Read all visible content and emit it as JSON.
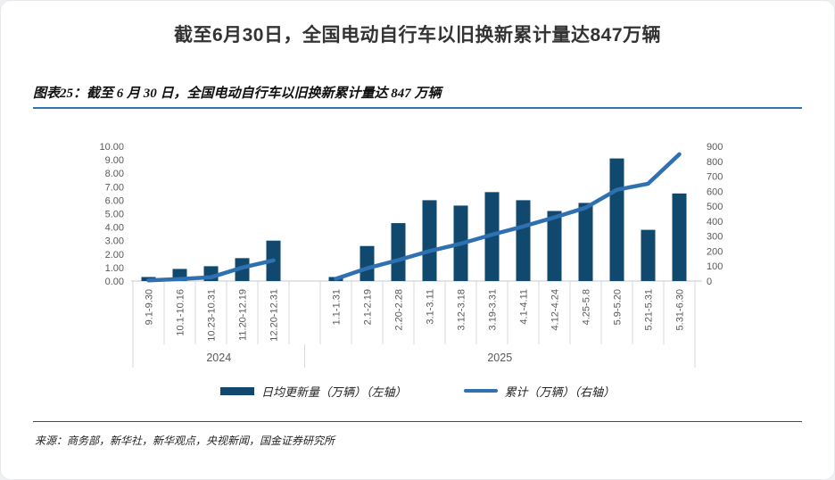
{
  "page": {
    "title": "截至6月30日，全国电动自行车以旧换新累计量达847万辆",
    "figure_caption": "图表25：截至 6 月 30 日，全国电动自行车以旧换新累计量达 847 万辆",
    "source": "来源：商务部，新华社，新华观点，央视新闻，国金证券研究所"
  },
  "chart_data": {
    "type": "combo (bar + line)",
    "title": "截至 6 月 30 日，全国电动自行车以旧换新累计量达 847 万辆",
    "categories": [
      "9.1-9.30",
      "10.1-10.16",
      "10.23-10.31",
      "11.20-12.19",
      "12.20-12.31",
      "1.1-1.31",
      "2.1-2.19",
      "2.20-2.28",
      "3.1-3.11",
      "3.12-3.18",
      "3.19-3.31",
      "4.1-4.11",
      "4.12-4.24",
      "4.25-5.8",
      "5.9-5.20",
      "5.21-5.31",
      "5.31-6.30"
    ],
    "category_groups": [
      {
        "label": "2024",
        "count": 5
      },
      {
        "label": "2025",
        "count": 12
      }
    ],
    "series": [
      {
        "name": "日均更新量（万辆）（左轴）",
        "type": "bar",
        "axis": "left",
        "color": "#11496e",
        "values": [
          0.3,
          0.9,
          1.1,
          1.7,
          3.0,
          0.3,
          2.6,
          4.3,
          6.0,
          5.6,
          6.6,
          6.0,
          5.2,
          5.8,
          9.1,
          3.8,
          6.5
        ]
      },
      {
        "name": "累计（万辆）（右轴）",
        "type": "line",
        "axis": "right",
        "color": "#2f71b0",
        "values": [
          5,
          13,
          25,
          90,
          138,
          15,
          85,
          140,
          200,
          250,
          310,
          365,
          425,
          490,
          610,
          650,
          847
        ],
        "gap_after_index": 4
      }
    ],
    "left_axis": {
      "min": 0,
      "max": 10,
      "ticks": [
        "0.00",
        "1.00",
        "2.00",
        "3.00",
        "4.00",
        "5.00",
        "6.00",
        "7.00",
        "8.00",
        "9.00",
        "10.00"
      ]
    },
    "right_axis": {
      "min": 0,
      "max": 900,
      "ticks": [
        "0",
        "100",
        "200",
        "300",
        "400",
        "500",
        "600",
        "700",
        "800",
        "900"
      ]
    },
    "grid": false,
    "legend_position": "bottom"
  }
}
